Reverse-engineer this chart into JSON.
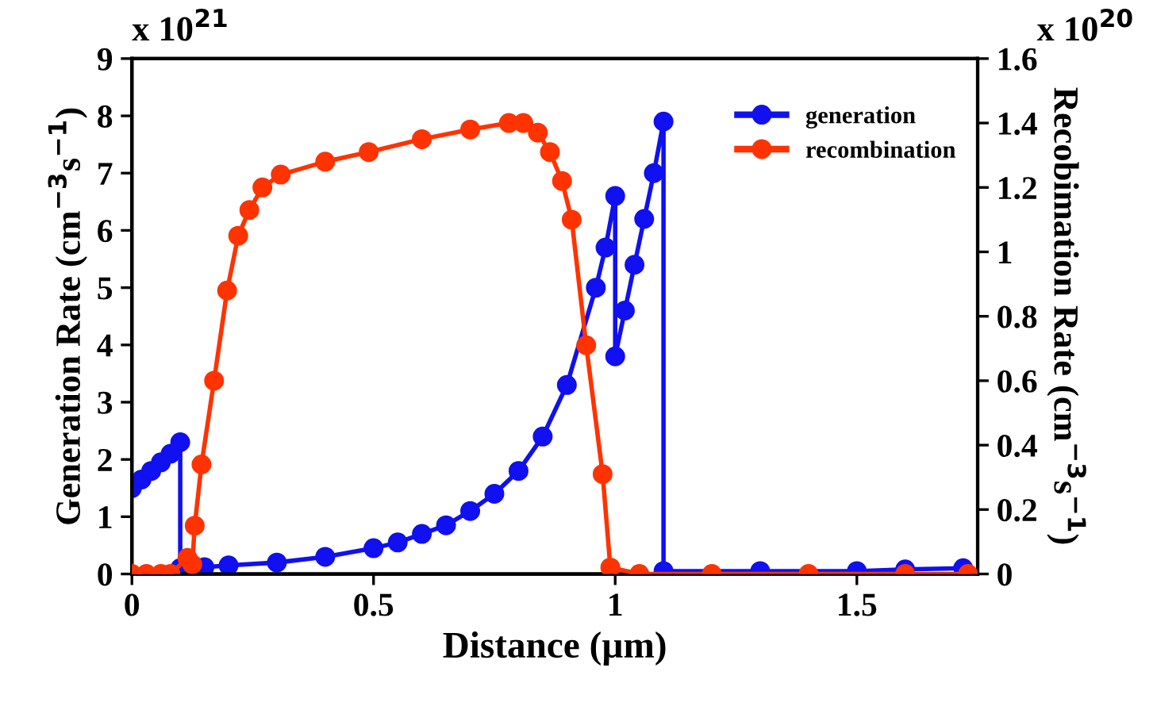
{
  "chart_data": {
    "type": "line",
    "xlabel": "Distance (µm)",
    "ylabel": "Generation Rate (cm$^{−3}$s$^{−1}$)",
    "y2label": "Recobimation Rate (cm$^{−3}$s$^{−1}$)",
    "annotations": [
      "x 10$^{21}$",
      "x 10$^{20}$"
    ],
    "xlim": [
      0,
      1.75
    ],
    "xticks": [
      0,
      0.5,
      1,
      1.5
    ],
    "ylim": [
      0,
      9
    ],
    "yticks": [
      0,
      1,
      2,
      3,
      4,
      5,
      6,
      7,
      8,
      9
    ],
    "y2lim": [
      0,
      1.6
    ],
    "y2ticks": [
      0,
      0.2,
      0.4,
      0.6,
      0.8,
      1,
      1.2,
      1.4,
      1.6
    ],
    "grid": false,
    "legend": "top right",
    "marker": "circle",
    "line_style": "solid",
    "series": [
      {
        "name": "generation",
        "color": "#1010f0",
        "x": [
          0,
          0.02,
          0.04,
          0.06,
          0.08,
          0.1,
          0.1,
          0.15,
          0.2,
          0.3,
          0.4,
          0.5,
          0.55,
          0.6,
          0.65,
          0.7,
          0.75,
          0.8,
          0.85,
          0.9,
          0.96,
          0.98,
          1.0,
          1.0,
          1.02,
          1.04,
          1.06,
          1.08,
          1.1,
          1.1,
          1.3,
          1.5,
          1.6,
          1.72
        ],
        "values": [
          1.5,
          1.65,
          1.8,
          1.95,
          2.1,
          2.3,
          0.1,
          0.12,
          0.15,
          0.2,
          0.3,
          0.45,
          0.55,
          0.7,
          0.85,
          1.1,
          1.4,
          1.8,
          2.4,
          3.3,
          5.0,
          5.7,
          6.6,
          3.8,
          4.6,
          5.4,
          6.2,
          7.0,
          7.9,
          0.05,
          0.05,
          0.05,
          0.08,
          0.1
        ]
      },
      {
        "name": "recombination",
        "color": "#ff3300",
        "axis": "y2",
        "x": [
          0,
          0.03,
          0.06,
          0.08,
          0.115,
          0.125,
          0.13,
          0.144,
          0.17,
          0.197,
          0.22,
          0.243,
          0.27,
          0.308,
          0.4,
          0.49,
          0.6,
          0.7,
          0.78,
          0.81,
          0.84,
          0.865,
          0.89,
          0.91,
          0.94,
          0.974,
          0.99,
          1.05,
          1.2,
          1.4,
          1.6,
          1.73
        ],
        "values": [
          0,
          0,
          0,
          0,
          0.05,
          0.03,
          0.15,
          0.34,
          0.6,
          0.88,
          1.05,
          1.13,
          1.2,
          1.24,
          1.28,
          1.31,
          1.35,
          1.38,
          1.4,
          1.4,
          1.37,
          1.31,
          1.22,
          1.1,
          0.71,
          0.31,
          0.02,
          0,
          0,
          0,
          0,
          0
        ]
      }
    ]
  }
}
